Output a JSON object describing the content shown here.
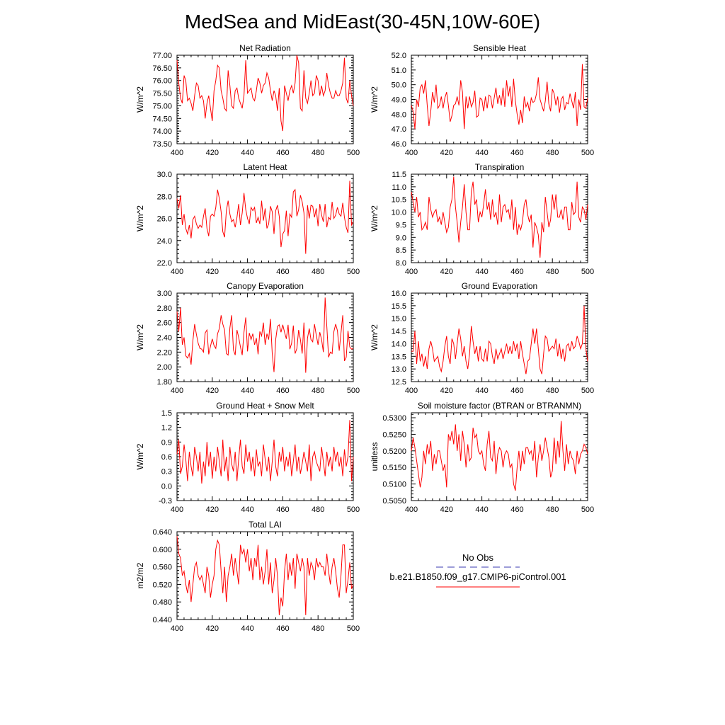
{
  "title": "MedSea and MidEast(30-45N,10W-60E)",
  "colors": {
    "model": "#ff0000",
    "obs": "#3a3ab0",
    "axis": "#000000"
  },
  "legend": {
    "obs_label": "No Obs",
    "model_label": "b.e21.B1850.f09_g17.CMIP6-piControl.001"
  },
  "chart_data": [
    {
      "type": "line",
      "title": "Net Radiation",
      "ylabel": "W/m^2",
      "xlim": [
        400,
        500
      ],
      "ylim": [
        73.5,
        77.0
      ],
      "xticks": [
        400,
        420,
        440,
        460,
        480,
        500
      ],
      "yticks": [
        "73.50",
        "74.00",
        "74.50",
        "75.00",
        "75.50",
        "76.00",
        "76.50",
        "77.00"
      ],
      "x_start": 400,
      "values": [
        76.8,
        75.9,
        75.3,
        75.1,
        76.2,
        76.0,
        75.2,
        75.3,
        75.1,
        74.8,
        75.4,
        75.9,
        75.8,
        75.3,
        75.4,
        75.2,
        74.5,
        75.1,
        75.4,
        74.9,
        74.4,
        75.6,
        76.0,
        76.6,
        76.5,
        75.6,
        75.3,
        74.9,
        74.8,
        76.4,
        75.8,
        75.0,
        74.9,
        75.6,
        75.7,
        75.3,
        75.1,
        74.9,
        75.4,
        76.8,
        75.5,
        75.6,
        75.7,
        75.3,
        75.2,
        75.6,
        76.1,
        75.9,
        75.5,
        75.8,
        75.9,
        76.3,
        76.1,
        75.6,
        75.2,
        75.6,
        75.4,
        74.8,
        75.7,
        74.4,
        74.0,
        75.8,
        75.5,
        75.2,
        75.6,
        75.8,
        75.5,
        75.9,
        77.0,
        76.7,
        74.9,
        74.8,
        76.4,
        75.3,
        75.1,
        75.5,
        76.0,
        75.4,
        75.5,
        76.2,
        76.0,
        75.4,
        75.8,
        75.4,
        75.6,
        76.3,
        75.8,
        75.5,
        75.3,
        75.3,
        75.6,
        75.4,
        75.4,
        75.6,
        75.9,
        76.9,
        75.3,
        75.1,
        76.0,
        75.4,
        75.0
      ]
    },
    {
      "type": "line",
      "title": "Sensible Heat",
      "ylabel": "W/m^2",
      "xlim": [
        400,
        500
      ],
      "ylim": [
        46.0,
        52.0
      ],
      "xticks": [
        400,
        420,
        440,
        460,
        480,
        500
      ],
      "yticks": [
        "46.0",
        "47.0",
        "48.0",
        "49.0",
        "50.0",
        "51.0",
        "52.0"
      ],
      "x_start": 400,
      "values": [
        48.6,
        48.2,
        47.0,
        49.0,
        48.5,
        49.8,
        50.0,
        49.4,
        50.3,
        48.6,
        47.2,
        48.2,
        49.5,
        48.8,
        50.0,
        48.4,
        48.6,
        49.2,
        48.4,
        49.1,
        49.5,
        48.6,
        47.5,
        47.9,
        48.6,
        48.7,
        49.2,
        48.6,
        50.3,
        49.5,
        47.0,
        49.2,
        48.4,
        49.2,
        48.5,
        48.8,
        49.6,
        47.8,
        47.9,
        49.1,
        49.0,
        48.2,
        49.2,
        48.4,
        49.3,
        49.2,
        48.4,
        49.1,
        49.8,
        48.7,
        49.3,
        48.6,
        49.8,
        48.5,
        50.3,
        49.2,
        49.9,
        48.5,
        50.4,
        48.9,
        48.0,
        47.3,
        48.3,
        47.4,
        49.2,
        48.5,
        48.8,
        48.2,
        49.1,
        48.8,
        48.9,
        49.4,
        50.5,
        49.0,
        48.6,
        48.2,
        48.9,
        50.2,
        48.7,
        48.2,
        49.7,
        49.4,
        48.6,
        49.2,
        48.1,
        49.0,
        49.2,
        48.3,
        48.8,
        48.7,
        49.4,
        48.9,
        48.4,
        49.5,
        47.2,
        49.0,
        48.3,
        51.4,
        48.5,
        48.4,
        49.1
      ]
    },
    {
      "type": "line",
      "title": "Latent Heat",
      "ylabel": "W/m^2",
      "xlim": [
        400,
        500
      ],
      "ylim": [
        22.0,
        30.0
      ],
      "xticks": [
        400,
        420,
        440,
        460,
        480,
        500
      ],
      "yticks": [
        "22.0",
        "24.0",
        "26.0",
        "28.0",
        "30.0"
      ],
      "x_start": 400,
      "values": [
        27.8,
        26.9,
        28.1,
        25.4,
        26.4,
        25.1,
        24.6,
        25.4,
        24.2,
        25.9,
        26.2,
        25.5,
        25.1,
        25.4,
        25.2,
        26.2,
        26.9,
        25.1,
        24.4,
        26.2,
        26.4,
        26.2,
        27.0,
        28.6,
        27.8,
        26.6,
        24.8,
        24.3,
        26.7,
        27.6,
        26.4,
        25.7,
        25.9,
        25.2,
        26.1,
        27.3,
        25.4,
        26.5,
        28.3,
        26.8,
        26.0,
        25.5,
        27.0,
        26.7,
        27.0,
        25.6,
        26.1,
        25.5,
        27.6,
        25.8,
        26.9,
        25.1,
        25.5,
        27.1,
        26.6,
        24.6,
        26.7,
        27.2,
        26.2,
        23.4,
        24.6,
        24.9,
        26.7,
        24.4,
        26.4,
        26.1,
        28.4,
        28.6,
        26.2,
        26.8,
        28.1,
        27.5,
        26.5,
        22.8,
        27.2,
        26.0,
        27.2,
        27.1,
        26.1,
        26.9,
        25.3,
        27.3,
        26.3,
        25.7,
        27.3,
        25.2,
        26.1,
        25.9,
        27.5,
        26.0,
        26.3,
        27.0,
        26.4,
        26.2,
        27.4,
        26.1,
        25.2,
        24.7,
        29.4,
        25.4,
        25.7
      ]
    },
    {
      "type": "line",
      "title": "Transpiration",
      "ylabel": "W/m^2",
      "xlim": [
        400,
        500
      ],
      "ylim": [
        8.0,
        11.5
      ],
      "xticks": [
        400,
        420,
        440,
        460,
        480,
        500
      ],
      "yticks": [
        "8.0",
        "8.5",
        "9.0",
        "9.5",
        "10.0",
        "10.5",
        "11.0",
        "11.5"
      ],
      "x_start": 400,
      "values": [
        10.8,
        10.4,
        10.0,
        10.6,
        9.8,
        10.0,
        9.3,
        9.4,
        9.6,
        9.3,
        10.6,
        10.1,
        9.8,
        10.0,
        10.1,
        9.6,
        9.8,
        9.5,
        10.0,
        9.6,
        9.2,
        9.4,
        10.2,
        10.5,
        11.4,
        10.2,
        9.6,
        8.8,
        9.6,
        10.2,
        11.1,
        10.0,
        9.3,
        9.3,
        10.8,
        11.2,
        10.3,
        10.5,
        9.6,
        10.0,
        9.8,
        10.3,
        10.9,
        10.1,
        10.4,
        9.7,
        10.5,
        9.8,
        10.0,
        9.5,
        10.7,
        9.6,
        10.2,
        10.3,
        10.0,
        10.1,
        9.7,
        10.5,
        9.3,
        10.2,
        9.1,
        9.5,
        9.3,
        9.6,
        10.3,
        10.5,
        9.9,
        9.6,
        9.9,
        8.6,
        9.6,
        9.4,
        9.1,
        8.2,
        9.6,
        9.2,
        10.6,
        10.0,
        9.4,
        9.7,
        10.7,
        10.1,
        10.7,
        9.8,
        9.8,
        10.1,
        9.7,
        10.2,
        10.2,
        9.3,
        9.3,
        10.4,
        9.9,
        10.0,
        11.2,
        9.8,
        9.6,
        10.2,
        10.1,
        9.7,
        10.3
      ]
    },
    {
      "type": "line",
      "title": "Canopy Evaporation",
      "ylabel": "W/m^2",
      "xlim": [
        400,
        500
      ],
      "ylim": [
        1.8,
        3.0
      ],
      "xticks": [
        400,
        420,
        440,
        460,
        480,
        500
      ],
      "yticks": [
        "1.80",
        "2.00",
        "2.20",
        "2.40",
        "2.60",
        "2.80",
        "3.00"
      ],
      "x_start": 400,
      "values": [
        2.75,
        2.48,
        2.8,
        2.3,
        2.4,
        2.15,
        2.12,
        2.18,
        2.03,
        2.35,
        2.58,
        2.44,
        2.32,
        2.25,
        2.24,
        2.2,
        2.46,
        2.5,
        2.17,
        2.28,
        2.38,
        2.29,
        2.25,
        2.45,
        2.52,
        2.7,
        2.58,
        2.5,
        2.18,
        2.16,
        2.53,
        2.7,
        2.23,
        2.16,
        2.5,
        2.4,
        2.27,
        2.16,
        2.47,
        2.67,
        2.21,
        2.46,
        2.37,
        2.45,
        2.3,
        2.39,
        2.17,
        2.48,
        2.42,
        2.6,
        2.3,
        2.45,
        2.37,
        2.65,
        2.18,
        1.93,
        2.37,
        2.55,
        2.57,
        2.47,
        2.57,
        2.47,
        2.38,
        2.57,
        2.24,
        2.32,
        2.56,
        2.18,
        2.25,
        2.5,
        2.37,
        2.18,
        2.6,
        1.92,
        2.39,
        2.52,
        2.37,
        2.34,
        2.58,
        2.43,
        2.3,
        2.47,
        2.37,
        2.2,
        2.94,
        2.55,
        2.13,
        2.2,
        2.18,
        2.48,
        2.58,
        2.49,
        2.22,
        2.46,
        2.7,
        2.08,
        2.13,
        2.49,
        2.27,
        2.24,
        2.25
      ]
    },
    {
      "type": "line",
      "title": "Ground Evaporation",
      "ylabel": "W/m^2",
      "xlim": [
        400,
        500
      ],
      "ylim": [
        12.5,
        16.0
      ],
      "xticks": [
        400,
        420,
        440,
        460,
        480,
        500
      ],
      "yticks": [
        "12.5",
        "13.0",
        "13.5",
        "14.0",
        "14.5",
        "15.0",
        "15.5",
        "16.0"
      ],
      "x_start": 400,
      "values": [
        13.7,
        13.7,
        14.5,
        13.2,
        14.1,
        13.3,
        13.6,
        13.1,
        13.5,
        13.0,
        13.8,
        14.1,
        13.8,
        13.3,
        13.4,
        13.5,
        13.1,
        12.9,
        13.3,
        13.9,
        14.3,
        13.5,
        13.2,
        14.2,
        14.0,
        13.4,
        14.0,
        14.6,
        14.2,
        13.5,
        13.9,
        13.3,
        13.0,
        13.6,
        14.7,
        14.1,
        13.6,
        13.9,
        13.3,
        13.9,
        13.4,
        13.3,
        13.8,
        13.3,
        14.1,
        14.0,
        13.5,
        13.2,
        13.8,
        13.4,
        13.6,
        13.8,
        13.4,
        13.7,
        14.0,
        13.6,
        13.9,
        13.6,
        14.1,
        13.7,
        14.0,
        13.4,
        14.1,
        13.6,
        13.2,
        12.8,
        13.3,
        13.4,
        14.0,
        14.6,
        14.0,
        14.6,
        13.8,
        13.0,
        12.8,
        13.6,
        14.3,
        14.2,
        13.7,
        13.8,
        13.9,
        13.8,
        14.2,
        13.5,
        14.0,
        13.4,
        13.8,
        13.3,
        13.9,
        14.0,
        13.7,
        14.1,
        13.8,
        13.9,
        14.3,
        14.1,
        13.8,
        14.0,
        15.5,
        13.8,
        13.3
      ]
    },
    {
      "type": "line",
      "title": "Ground Heat + Snow Melt",
      "ylabel": "W/m^2",
      "xlim": [
        400,
        500
      ],
      "ylim": [
        -0.3,
        1.5
      ],
      "xticks": [
        400,
        420,
        440,
        460,
        480,
        500
      ],
      "yticks": [
        "-0.3",
        "0.0",
        "0.3",
        "0.6",
        "0.9",
        "1.2",
        "1.5"
      ],
      "x_start": 400,
      "values": [
        0.65,
        0.95,
        0.25,
        0.4,
        0.85,
        0.55,
        0.1,
        0.7,
        0.4,
        0.2,
        0.8,
        0.6,
        0.3,
        0.7,
        0.05,
        0.5,
        0.2,
        0.9,
        0.4,
        0.7,
        0.15,
        0.6,
        0.3,
        0.8,
        0.5,
        0.2,
        0.95,
        0.3,
        0.6,
        0.1,
        0.8,
        0.45,
        0.3,
        0.7,
        0.1,
        0.55,
        0.95,
        0.4,
        0.25,
        0.85,
        0.5,
        0.7,
        0.3,
        0.6,
        0.2,
        0.75,
        0.4,
        0.5,
        0.2,
        0.85,
        0.55,
        0.3,
        0.6,
        0.1,
        0.5,
        0.95,
        0.4,
        0.2,
        0.7,
        0.5,
        0.8,
        0.3,
        0.6,
        0.4,
        0.7,
        0.2,
        0.5,
        0.85,
        0.3,
        0.6,
        0.25,
        0.45,
        0.7,
        0.5,
        0.3,
        0.85,
        0.1,
        0.6,
        0.7,
        0.5,
        0.4,
        0.3,
        0.8,
        0.5,
        0.2,
        0.7,
        0.4,
        0.6,
        0.3,
        0.8,
        0.5,
        0.7,
        0.4,
        0.6,
        0.2,
        0.75,
        0.4,
        0.6,
        1.35,
        0.1,
        0.6
      ]
    },
    {
      "type": "line",
      "title": "Soil moisture factor (BTRAN or BTRANMN)",
      "ylabel": "unitless",
      "xlim": [
        400,
        500
      ],
      "ylim": [
        0.505,
        0.5315
      ],
      "xticks": [
        400,
        420,
        440,
        460,
        480,
        500
      ],
      "yticks": [
        "0.5050",
        "0.5100",
        "0.5150",
        "0.5200",
        "0.5250",
        "0.5300"
      ],
      "x_start": 400,
      "values": [
        0.52,
        0.524,
        0.521,
        0.517,
        0.513,
        0.509,
        0.512,
        0.52,
        0.516,
        0.522,
        0.519,
        0.523,
        0.514,
        0.519,
        0.516,
        0.52,
        0.52,
        0.517,
        0.514,
        0.516,
        0.509,
        0.525,
        0.523,
        0.526,
        0.522,
        0.528,
        0.52,
        0.525,
        0.517,
        0.526,
        0.522,
        0.515,
        0.522,
        0.517,
        0.518,
        0.527,
        0.524,
        0.525,
        0.52,
        0.519,
        0.52,
        0.516,
        0.514,
        0.522,
        0.526,
        0.518,
        0.517,
        0.523,
        0.513,
        0.519,
        0.521,
        0.52,
        0.515,
        0.519,
        0.52,
        0.519,
        0.515,
        0.516,
        0.51,
        0.508,
        0.515,
        0.52,
        0.514,
        0.52,
        0.516,
        0.521,
        0.521,
        0.519,
        0.52,
        0.517,
        0.523,
        0.512,
        0.518,
        0.522,
        0.517,
        0.52,
        0.524,
        0.521,
        0.518,
        0.512,
        0.514,
        0.524,
        0.516,
        0.523,
        0.518,
        0.529,
        0.52,
        0.514,
        0.522,
        0.516,
        0.52,
        0.518,
        0.517,
        0.513,
        0.52,
        0.516,
        0.519,
        0.52,
        0.522,
        0.521,
        0.519
      ]
    },
    {
      "type": "line",
      "title": "Total LAI",
      "ylabel": "m2/m2",
      "xlim": [
        400,
        500
      ],
      "ylim": [
        0.44,
        0.64
      ],
      "xticks": [
        400,
        420,
        440,
        460,
        480,
        500
      ],
      "yticks": [
        "0.440",
        "0.480",
        "0.520",
        "0.560",
        "0.600",
        "0.640"
      ],
      "x_start": 400,
      "values": [
        0.63,
        0.59,
        0.58,
        0.54,
        0.55,
        0.52,
        0.5,
        0.53,
        0.48,
        0.52,
        0.56,
        0.57,
        0.54,
        0.53,
        0.54,
        0.52,
        0.5,
        0.56,
        0.54,
        0.49,
        0.52,
        0.54,
        0.6,
        0.62,
        0.61,
        0.55,
        0.5,
        0.56,
        0.48,
        0.54,
        0.56,
        0.59,
        0.54,
        0.58,
        0.55,
        0.52,
        0.61,
        0.59,
        0.6,
        0.57,
        0.6,
        0.55,
        0.58,
        0.53,
        0.58,
        0.56,
        0.61,
        0.53,
        0.56,
        0.52,
        0.55,
        0.6,
        0.52,
        0.57,
        0.5,
        0.53,
        0.58,
        0.54,
        0.45,
        0.49,
        0.47,
        0.55,
        0.59,
        0.53,
        0.57,
        0.54,
        0.58,
        0.51,
        0.59,
        0.57,
        0.55,
        0.58,
        0.56,
        0.45,
        0.58,
        0.54,
        0.57,
        0.56,
        0.53,
        0.58,
        0.56,
        0.57,
        0.56,
        0.56,
        0.54,
        0.59,
        0.55,
        0.52,
        0.56,
        0.58,
        0.55,
        0.51,
        0.49,
        0.54,
        0.61,
        0.61,
        0.5,
        0.53,
        0.57,
        0.51,
        0.52
      ]
    }
  ]
}
